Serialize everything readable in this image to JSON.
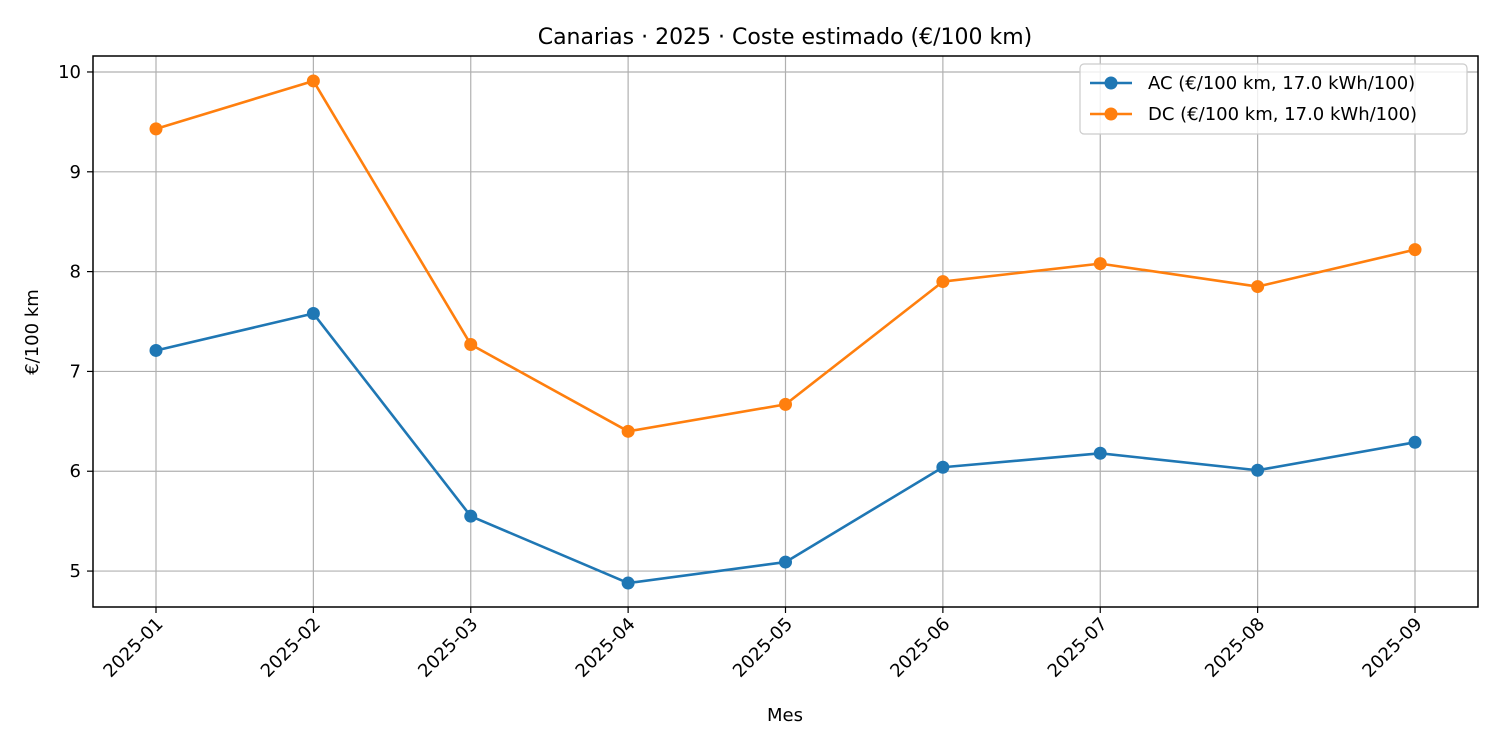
{
  "chart_data": {
    "type": "line",
    "title": "Canarias · 2025 · Coste estimado (€/100 km)",
    "xlabel": "Mes",
    "ylabel": "€/100 km",
    "categories": [
      "2025-01",
      "2025-02",
      "2025-03",
      "2025-04",
      "2025-05",
      "2025-06",
      "2025-07",
      "2025-08",
      "2025-09"
    ],
    "ylim": [
      4.64,
      10.16
    ],
    "yticks": [
      5,
      6,
      7,
      8,
      9,
      10
    ],
    "grid": true,
    "legend_position": "top-right",
    "series": [
      {
        "name": "AC (€/100 km, 17.0 kWh/100)",
        "color": "#1f77b4",
        "values": [
          7.21,
          7.58,
          5.55,
          4.88,
          5.09,
          6.04,
          6.18,
          6.01,
          6.29
        ]
      },
      {
        "name": "DC (€/100 km, 17.0 kWh/100)",
        "color": "#ff7f0e",
        "values": [
          9.43,
          9.91,
          7.27,
          6.4,
          6.67,
          7.9,
          8.08,
          7.85,
          8.22
        ]
      }
    ]
  }
}
